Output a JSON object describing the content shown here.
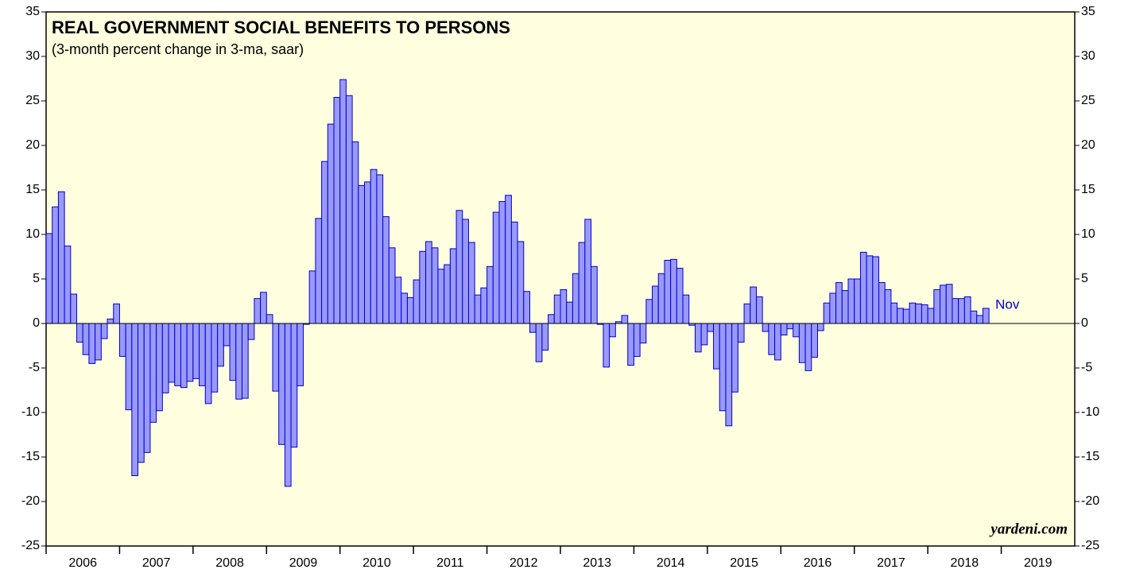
{
  "chart_data": {
    "type": "bar",
    "title": "REAL GOVERNMENT SOCIAL BENEFITS TO PERSONS",
    "subtitle": "(3-month percent change in 3-ma, saar)",
    "annotation": "Nov",
    "source": "yardeni.com",
    "years": [
      "2006",
      "2007",
      "2008",
      "2009",
      "2010",
      "2011",
      "2012",
      "2013",
      "2014",
      "2015",
      "2016",
      "2017",
      "2018",
      "2019"
    ],
    "values": [
      10.1,
      13.1,
      14.8,
      8.7,
      3.3,
      -2.1,
      -3.5,
      -4.5,
      -4.1,
      -1.7,
      0.5,
      2.2,
      -3.7,
      -9.7,
      -17.1,
      -15.6,
      -14.5,
      -11.1,
      -9.8,
      -7.8,
      -6.6,
      -7.0,
      -7.2,
      -6.5,
      -6.2,
      -7.0,
      -9.0,
      -7.7,
      -4.8,
      -2.5,
      -6.4,
      -8.5,
      -8.4,
      -1.8,
      2.8,
      3.5,
      1.0,
      -7.6,
      -13.6,
      -18.3,
      -13.9,
      -7.0,
      -0.1,
      5.9,
      11.8,
      18.2,
      22.4,
      25.4,
      27.4,
      25.6,
      20.4,
      15.5,
      15.9,
      17.3,
      16.7,
      12.0,
      8.5,
      5.2,
      3.4,
      2.9,
      4.9,
      8.1,
      9.2,
      8.5,
      6.1,
      6.6,
      8.4,
      12.7,
      11.7,
      9.1,
      3.2,
      4.0,
      6.4,
      12.5,
      13.7,
      14.4,
      11.4,
      9.2,
      3.6,
      -1.0,
      -4.3,
      -3.0,
      1.0,
      3.2,
      3.8,
      2.4,
      5.6,
      9.1,
      11.7,
      6.4,
      -0.1,
      -4.9,
      -1.5,
      0.2,
      0.9,
      -4.7,
      -3.7,
      -2.2,
      2.7,
      4.2,
      5.6,
      7.1,
      7.2,
      6.2,
      3.2,
      -0.2,
      -3.2,
      -2.4,
      -0.9,
      -5.1,
      -9.8,
      -11.5,
      -7.7,
      -2.1,
      2.2,
      4.1,
      3.0,
      -0.9,
      -3.5,
      -4.1,
      -1.3,
      -0.6,
      -1.5,
      -4.4,
      -5.3,
      -3.8,
      -0.8,
      2.3,
      3.4,
      4.6,
      3.7,
      5.0,
      5.0,
      8.0,
      7.6,
      7.5,
      4.6,
      3.8,
      2.3,
      1.7,
      1.6,
      2.3,
      2.2,
      2.1,
      1.7,
      3.8,
      4.3,
      4.4,
      2.8,
      2.8,
      3.0,
      1.4,
      0.9,
      1.7
    ],
    "color": "#9999ff",
    "edgecolor": "#0000cc",
    "ylim": [
      -25,
      35
    ],
    "yticks": [
      -25,
      -20,
      -15,
      -10,
      -5,
      0,
      5,
      10,
      15,
      20,
      25,
      30,
      35
    ]
  }
}
